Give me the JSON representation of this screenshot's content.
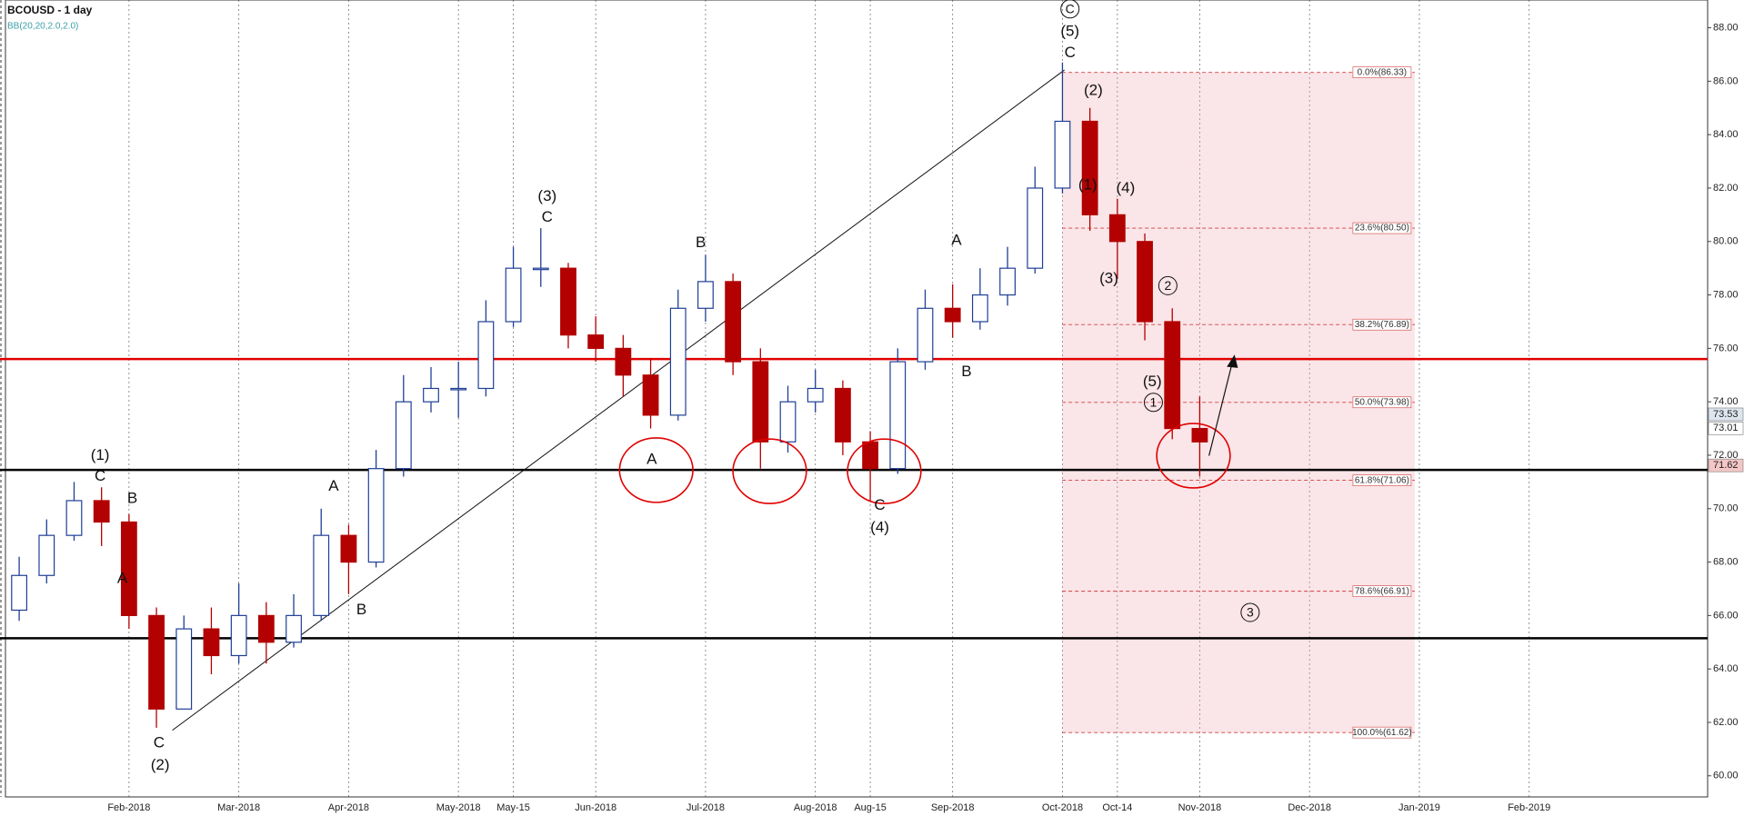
{
  "chart_data": {
    "type": "candlestick",
    "title": "BCOUSD  - 1 day",
    "subtitle": "BB(20,20,2.0,2.0)",
    "categories": [
      null,
      null,
      null,
      null,
      "Feb-2018",
      null,
      null,
      null,
      "Mar-2018",
      null,
      null,
      null,
      "Apr-2018",
      null,
      null,
      null,
      "May-2018",
      null,
      "May-15",
      null,
      null,
      "Jun-2018",
      null,
      null,
      null,
      "Jul-2018",
      null,
      null,
      null,
      "Aug-2018",
      null,
      "Aug-15",
      null,
      null,
      "Sep-2018",
      null,
      null,
      null,
      "Oct-2018",
      null,
      "Oct-14",
      null,
      null,
      "Nov-2018",
      null,
      null,
      null,
      "Dec-2018",
      null,
      null,
      null,
      "Jan-2019",
      null,
      null,
      null,
      "Feb-2019",
      null,
      null,
      null,
      null,
      null,
      null
    ],
    "open": [
      66.2,
      67.5,
      69,
      70.3,
      69.5,
      66,
      62.5,
      65.5,
      64.5,
      66,
      65,
      66,
      69,
      68,
      71.5,
      74,
      74.5,
      74.5,
      77,
      79,
      79,
      76.5,
      76,
      75,
      73.5,
      77.5,
      78.5,
      75.5,
      72.5,
      74,
      74.5,
      72.5,
      71.5,
      75.5,
      77.5,
      77,
      78,
      79,
      82,
      84.5,
      81,
      80,
      77,
      73,
      null,
      null,
      null,
      null,
      null,
      null,
      null,
      null,
      null,
      null,
      null,
      null,
      null,
      null,
      null,
      null,
      null,
      null
    ],
    "high": [
      68.2,
      69.6,
      71,
      70.8,
      69.8,
      66.3,
      66,
      66.3,
      67.2,
      66.5,
      66.8,
      70,
      69.4,
      72.2,
      75,
      75.3,
      75.5,
      77.8,
      79.8,
      80.5,
      79.2,
      77.2,
      76.5,
      75.6,
      78.2,
      79.5,
      78.8,
      76,
      74.6,
      75.2,
      74.8,
      72.9,
      76,
      78.2,
      78.4,
      79,
      79.8,
      82.8,
      86.7,
      85,
      81.6,
      80.3,
      77.5,
      74.2,
      null,
      null,
      null,
      null,
      null,
      null,
      null,
      null,
      null,
      null,
      null,
      null,
      null,
      null,
      null,
      null,
      null,
      null
    ],
    "low": [
      65.8,
      67.2,
      68.8,
      68.6,
      65.5,
      61.8,
      62.5,
      63.8,
      64.2,
      64.2,
      64.8,
      65.8,
      66.8,
      67.8,
      71.2,
      73.6,
      73.4,
      74.2,
      76.8,
      78.3,
      76,
      75.5,
      74.2,
      73,
      73.3,
      77,
      75,
      71.5,
      72.1,
      73.6,
      72,
      70.3,
      71.3,
      75.2,
      76.4,
      76.7,
      77.6,
      78.8,
      81.8,
      80.4,
      78.6,
      76.3,
      72.6,
      71.2,
      null,
      null,
      null,
      null,
      null,
      null,
      null,
      null,
      null,
      null,
      null,
      null,
      null,
      null,
      null,
      null,
      null,
      null
    ],
    "close": [
      67.5,
      69,
      70.3,
      69.5,
      66,
      62.5,
      65.5,
      64.5,
      66,
      65,
      66,
      69,
      68,
      71.5,
      74,
      74.5,
      74.5,
      77,
      79,
      79,
      76.5,
      76,
      75,
      73.5,
      77.5,
      78.5,
      75.5,
      72.5,
      74,
      74.5,
      72.5,
      71.5,
      75.5,
      77.5,
      77,
      78,
      79,
      82,
      84.5,
      81,
      80,
      77,
      73,
      72.5,
      null,
      null,
      null,
      null,
      null,
      null,
      null,
      null,
      null,
      null,
      null,
      null,
      null,
      null,
      null,
      null,
      null,
      null
    ],
    "up_color": "#1f3f95",
    "down_color": "#b30000",
    "ylim": [
      59.21,
      89.04
    ],
    "yticks": [
      {
        "value": 60,
        "label": "60.00"
      },
      {
        "value": 62,
        "label": "62.00"
      },
      {
        "value": 64,
        "label": "64.00"
      },
      {
        "value": 66,
        "label": "66.00"
      },
      {
        "value": 68,
        "label": "68.00"
      },
      {
        "value": 70,
        "label": "70.00"
      },
      {
        "value": 72,
        "label": "72.00"
      },
      {
        "value": 74,
        "label": "74.00"
      },
      {
        "value": 76,
        "label": "76.00"
      },
      {
        "value": 78,
        "label": "78.00"
      },
      {
        "value": 80,
        "label": "80.00"
      },
      {
        "value": 82,
        "label": "82.00"
      },
      {
        "value": 84,
        "label": "84.00"
      },
      {
        "value": 86,
        "label": "86.00"
      },
      {
        "value": 88,
        "label": "88.00"
      }
    ],
    "grid": true,
    "hlines": [
      {
        "value": 75.6,
        "color": "#e00000"
      },
      {
        "value": 71.45,
        "color": "#000000"
      },
      {
        "value": 65.15,
        "color": "#000000"
      }
    ],
    "fib_levels": [
      {
        "value": 86.33,
        "label": "0.0%(86.33)"
      },
      {
        "value": 80.5,
        "label": "23.6%(80.50)"
      },
      {
        "value": 76.89,
        "label": "38.2%(76.89)"
      },
      {
        "value": 73.98,
        "label": "50.0%(73.98)"
      },
      {
        "value": 71.06,
        "label": "61.8%(71.06)"
      },
      {
        "value": 66.91,
        "label": "78.6%(66.91)"
      },
      {
        "value": 61.62,
        "label": "100.0%(61.62)"
      }
    ],
    "price_tags": [
      {
        "value": 73.53,
        "label": "73.53",
        "color": "#dde6ef"
      },
      {
        "value": 73.01,
        "label": "73.01",
        "color": "#ffffff"
      },
      {
        "value": 71.62,
        "label": "71.62",
        "color": "#f4c6c6"
      }
    ],
    "annotations": [
      "(1)",
      "C",
      "B",
      "A",
      "C",
      "(2)",
      "A",
      "B",
      "(3)",
      "C",
      "A",
      "B",
      "C",
      "(4)",
      "A",
      "B",
      "C",
      "(5)",
      "C",
      "(2)",
      "(1)",
      "(4)",
      "(3)",
      "2",
      "(5)",
      "1",
      "3"
    ]
  }
}
